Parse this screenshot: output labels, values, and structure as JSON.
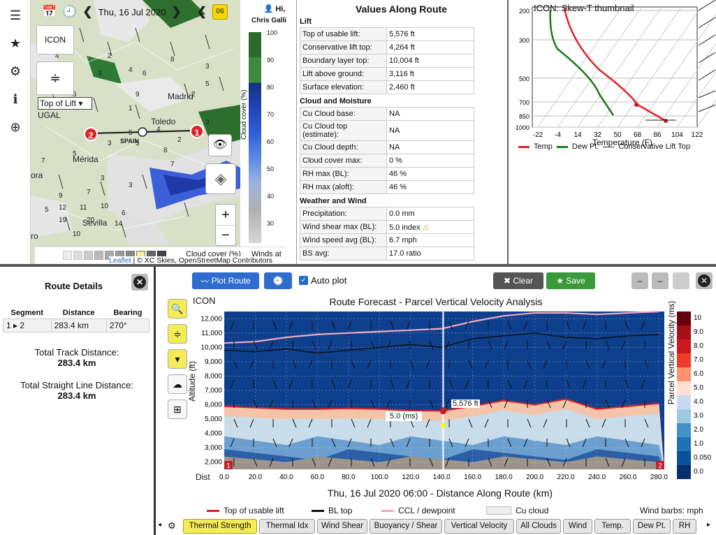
{
  "topbar": {
    "date": "Thu, 16 Jul 2020",
    "day_badge": "06",
    "user_greeting": "Hi,",
    "user_name": "Chris Galli"
  },
  "map": {
    "model_button": "ICON",
    "layer_select": "Top of Lift",
    "places": [
      {
        "name": "Madrid",
        "x": 196,
        "y": 145
      },
      {
        "name": "Toledo",
        "x": 172,
        "y": 181
      },
      {
        "name": "SPAIN",
        "x": 128,
        "y": 211
      },
      {
        "name": "Mérida",
        "x": 60,
        "y": 235
      },
      {
        "name": "Sevilla",
        "x": 74,
        "y": 326
      },
      {
        "name": "UGAL",
        "x": 10,
        "y": 172
      },
      {
        "name": "ora",
        "x": 0,
        "y": 258
      },
      {
        "name": "ro",
        "x": 0,
        "y": 345
      }
    ],
    "wind_numbers": [
      "2",
      "4",
      "8",
      "3",
      "2",
      "5",
      "3",
      "9",
      "2",
      "5",
      "4",
      "2",
      "3",
      "7",
      "5",
      "3",
      "3",
      "9",
      "7",
      "5",
      "12",
      "11",
      "10",
      "6",
      "19",
      "20",
      "14",
      "10",
      "5",
      "8",
      "3",
      "2",
      "4",
      "6",
      "7",
      "1",
      "5"
    ],
    "route_markers": [
      {
        "label": "2"
      },
      {
        "label": "1"
      }
    ],
    "attribution_link": "Leaflet",
    "attribution_text": "| © XC Skies, OpenStreetMap Contributors",
    "bottom_label_1": "Cloud cover (%)",
    "bottom_label_2": "Winds at",
    "zoom_in": "+",
    "zoom_out": "−"
  },
  "legend": {
    "title": "Cloud cover (%)",
    "ticks": [
      "100",
      "90",
      "80",
      "70",
      "60",
      "50",
      "40",
      "30"
    ]
  },
  "values": {
    "title": "Values Along Route",
    "sections": [
      {
        "name": "Lift",
        "rows": [
          {
            "label": "Top of usable lift:",
            "value": "5,576 ft"
          },
          {
            "label": "Conservative lift top:",
            "value": "4,264 ft"
          },
          {
            "label": "Boundary layer top:",
            "value": "10,004 ft"
          },
          {
            "label": "Lift above ground:",
            "value": "3,116 ft"
          },
          {
            "label": "Surface elevation:",
            "value": "2,460 ft"
          }
        ]
      },
      {
        "name": "Cloud and Moisture",
        "rows": [
          {
            "label": "Cu Cloud base:",
            "value": "NA"
          },
          {
            "label": "Cu Cloud top (estimate):",
            "value": "NA"
          },
          {
            "label": "Cu Cloud depth:",
            "value": "NA"
          },
          {
            "label": "Cloud cover max:",
            "value": "0 %"
          },
          {
            "label": "RH max (BL):",
            "value": "46 %"
          },
          {
            "label": "RH max (aloft):",
            "value": "46 %"
          }
        ]
      },
      {
        "name": "Weather and Wind",
        "rows": [
          {
            "label": "Precipitation:",
            "value": "0.0 mm"
          },
          {
            "label": "Wind shear max (BL):",
            "value": "5.0 index"
          },
          {
            "label": "Wind speed avg (BL):",
            "value": "6.7 mph"
          },
          {
            "label": "BS avg:",
            "value": "17.0 ratio"
          }
        ]
      }
    ]
  },
  "skewt": {
    "title": "ICON: Skew-T thumbnail",
    "pressure_ticks": [
      "200",
      "300",
      "500",
      "700",
      "850",
      "1000"
    ],
    "temp_ticks": [
      "-22",
      "-4",
      "14",
      "32",
      "50",
      "68",
      "86",
      "104",
      "122"
    ],
    "xlabel": "Temperature (F)",
    "legend": [
      "Temp",
      "Dew Pt.",
      "Conservative Lift Top"
    ],
    "colors": {
      "temp": "#e0202a",
      "dew": "#1a7a1a"
    }
  },
  "route": {
    "title": "Route Details",
    "headers": [
      "Segment",
      "Distance",
      "Bearing"
    ],
    "row": {
      "segment_from": "1",
      "segment_to": "2",
      "distance": "283.4 km",
      "bearing": "270°"
    },
    "total_track_label": "Total Track Distance:",
    "total_track": "283.4 km",
    "total_straight_label": "Total Straight Line Distance:",
    "total_straight": "283.4 km"
  },
  "forecast": {
    "buttons": {
      "plot_route": "Plot Route",
      "auto_plot": "Auto plot",
      "clear": "Clear",
      "save": "Save"
    },
    "model_label": "ICON",
    "marker_value": "5,576 ft",
    "cursor_value": "5.0 (ms)",
    "corner_labels": [
      "1",
      "2"
    ],
    "dist_label": "Dist",
    "colorbar_title": "Parcel Vertical Velocity (ms)",
    "colorbar_ticks": [
      "10",
      "9.0",
      "8.0",
      "7.0",
      "6.0",
      "5.0",
      "4.0",
      "3.0",
      "2.0",
      "1.0",
      "0.050",
      "0.0"
    ],
    "legend": {
      "lift": "Top of usable lift",
      "bl": "BL top",
      "ccl": "CCL / dewpoint",
      "cu": "Cu cloud",
      "barbs": "Wind barbs: mph"
    },
    "tabs": [
      "Thermal Strength",
      "Thermal Idx",
      "Wind Shear",
      "Buoyancy / Shear",
      "Vertical Velocity",
      "All Clouds",
      "Wind",
      "Temp.",
      "Dew Pt.",
      "RH"
    ],
    "active_tab": "Thermal Strength"
  },
  "chart_data": {
    "type": "area",
    "title": "Route Forecast - Parcel Vertical Velocity Analysis",
    "xlabel": "Thu, 16 Jul 2020 06:00 - Distance Along Route (km)",
    "ylabel": "Altitude (ft)",
    "xlim": [
      0,
      283.4
    ],
    "ylim": [
      1500,
      12500
    ],
    "x_ticks": [
      "0.0",
      "20.0",
      "40.0",
      "60.0",
      "80.0",
      "100.0",
      "120.0",
      "140.0",
      "160.0",
      "180.0",
      "200.0",
      "220.0",
      "240.0",
      "260.0",
      "280.0"
    ],
    "y_ticks": [
      "2,000",
      "3,000",
      "4,000",
      "5,000",
      "6,000",
      "7,000",
      "8,000",
      "9,000",
      "10,000",
      "11,000",
      "12,000"
    ],
    "x": [
      0,
      20,
      40,
      60,
      80,
      100,
      120,
      140,
      160,
      180,
      200,
      220,
      240,
      260,
      280
    ],
    "series": [
      {
        "name": "Top of usable lift",
        "values": [
          5900,
          5800,
          5700,
          5700,
          5750,
          5700,
          5600,
          5576,
          5900,
          6300,
          6000,
          6400,
          5700,
          5900,
          6100
        ]
      },
      {
        "name": "BL top",
        "values": [
          9800,
          9700,
          9900,
          9600,
          9800,
          10000,
          10200,
          10000,
          10600,
          10800,
          11000,
          10700,
          10600,
          10800,
          10900
        ]
      },
      {
        "name": "CCL / dewpoint",
        "values": [
          10300,
          10400,
          10700,
          10900,
          11000,
          11100,
          11200,
          11300,
          11800,
          12200,
          12400,
          12400,
          12300,
          12400,
          12500
        ]
      }
    ],
    "cursor": {
      "x": 141,
      "value": 5576
    }
  }
}
